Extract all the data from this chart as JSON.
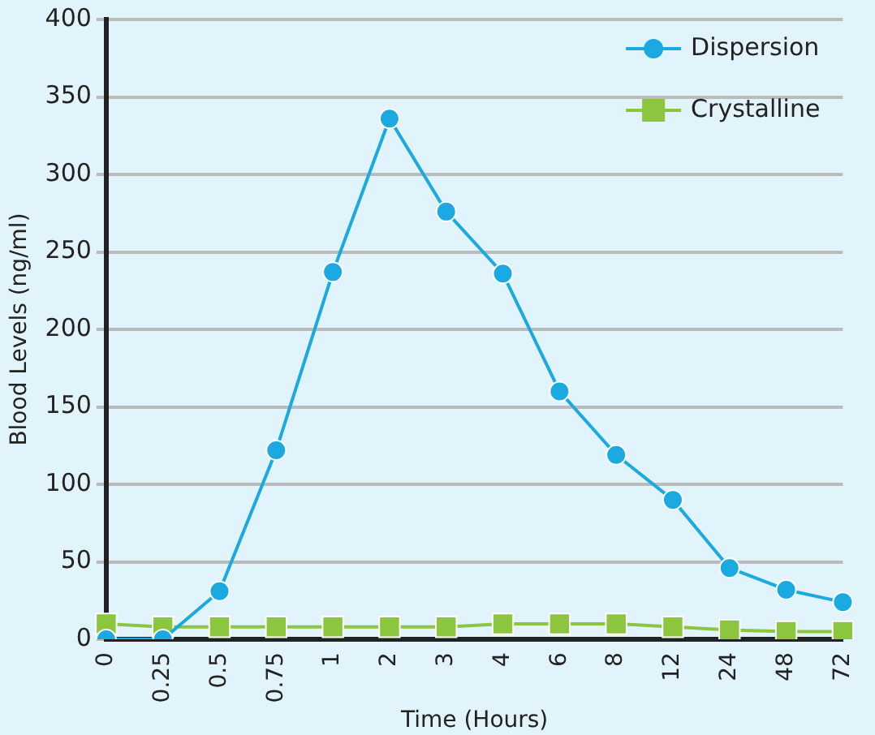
{
  "chart_data": {
    "type": "line",
    "xlabel": "Time (Hours)",
    "ylabel": "Blood Levels (ng/ml)",
    "categories": [
      "0",
      "0.25",
      "0.5",
      "0.75",
      "1",
      "2",
      "3",
      "4",
      "6",
      "8",
      "12",
      "24",
      "48",
      "72"
    ],
    "series": [
      {
        "name": "Dispersion",
        "color": "#1aa9e0",
        "marker": "circle",
        "values": [
          0,
          0,
          31,
          122,
          237,
          336,
          276,
          236,
          160,
          119,
          90,
          46,
          32,
          24
        ]
      },
      {
        "name": "Crystalline",
        "color": "#8cc63f",
        "marker": "square",
        "values": [
          10,
          8,
          8,
          8,
          8,
          8,
          8,
          10,
          10,
          10,
          8,
          6,
          5,
          5
        ]
      }
    ],
    "ylim": [
      0,
      400
    ],
    "yticks": [
      0,
      50,
      100,
      150,
      200,
      250,
      300,
      350,
      400
    ],
    "grid": "y",
    "legend": "top right"
  }
}
